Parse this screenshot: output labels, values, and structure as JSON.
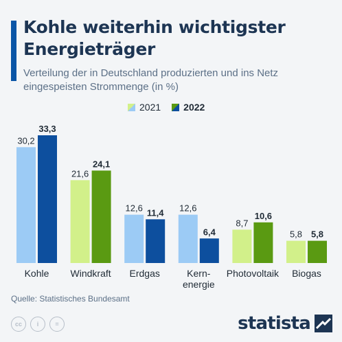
{
  "title": "Kohle weiterhin wichtigster Energieträger",
  "subtitle": "Verteilung der in Deutschland produzierten und ins Netz eingespeisten Strommenge (in %)",
  "legend": {
    "year1": "2021",
    "year2": "2022"
  },
  "source": "Quelle: Statistisches Bundesamt",
  "brand": "statista",
  "colors": {
    "accent": "#0a55a6",
    "blue_light": "#9ccbf5",
    "blue_dark": "#0d4f9e",
    "green_light": "#d2f08a",
    "green_dark": "#5a9a12"
  },
  "chart_data": {
    "type": "bar",
    "title": "Kohle weiterhin wichtigster Energieträger",
    "xlabel": "",
    "ylabel": "",
    "ylim": [
      0,
      33.3
    ],
    "grid": false,
    "legend_position": "top",
    "categories": [
      "Kohle",
      "Windkraft",
      "Erdgas",
      "Kern-energie",
      "Photovoltaik",
      "Biogas"
    ],
    "category_label_lines": [
      [
        "Kohle"
      ],
      [
        "Windkraft"
      ],
      [
        "Erdgas"
      ],
      [
        "Kern-",
        "energie"
      ],
      [
        "Photovoltaik"
      ],
      [
        "Biogas"
      ]
    ],
    "category_color_family": [
      "blue",
      "green",
      "blue",
      "blue",
      "green",
      "green"
    ],
    "series": [
      {
        "name": "2021",
        "values": [
          30.2,
          21.6,
          12.6,
          12.6,
          8.7,
          5.8
        ],
        "labels": [
          "30,2",
          "21,6",
          "12,6",
          "12,6",
          "8,7",
          "5,8"
        ]
      },
      {
        "name": "2022",
        "values": [
          33.3,
          24.1,
          11.4,
          6.4,
          10.6,
          5.8
        ],
        "labels": [
          "33,3",
          "24,1",
          "11,4",
          "6,4",
          "10,6",
          "5,8"
        ]
      }
    ]
  }
}
